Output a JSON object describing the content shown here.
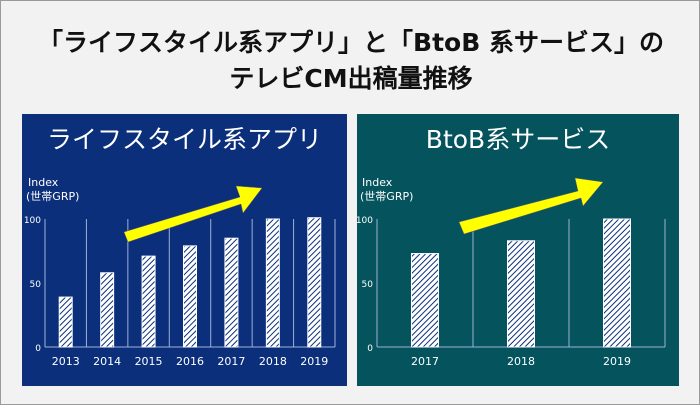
{
  "title_line1": "「ライフスタイル系アプリ」と「BtoB 系サービス」の",
  "title_line2": "テレビCM出稿量推移",
  "colors": {
    "left_panel": "#0b2f7b",
    "right_panel": "#04535d",
    "arrow": "#ffff00",
    "bar_hatch": "#0b2f7b"
  },
  "chart_data": [
    {
      "type": "bar",
      "title": "ライフスタイル系アプリ",
      "ylabel_line1": "Index",
      "ylabel_line2": "(世帯GRP)",
      "categories": [
        "2013",
        "2014",
        "2015",
        "2016",
        "2017",
        "2018",
        "2019"
      ],
      "values": [
        39,
        58,
        71,
        79,
        85,
        100,
        101
      ],
      "yticks": [
        "0",
        "50",
        "100"
      ],
      "ylim": [
        0,
        100
      ],
      "annotation": "upward-arrow"
    },
    {
      "type": "bar",
      "title": "BtoB系サービス",
      "ylabel_line1": "Index",
      "ylabel_line2": "(世帯GRP)",
      "categories": [
        "2017",
        "2018",
        "2019"
      ],
      "values": [
        73,
        83,
        100
      ],
      "yticks": [
        "0",
        "50",
        "100"
      ],
      "ylim": [
        0,
        100
      ],
      "annotation": "upward-arrow"
    }
  ]
}
